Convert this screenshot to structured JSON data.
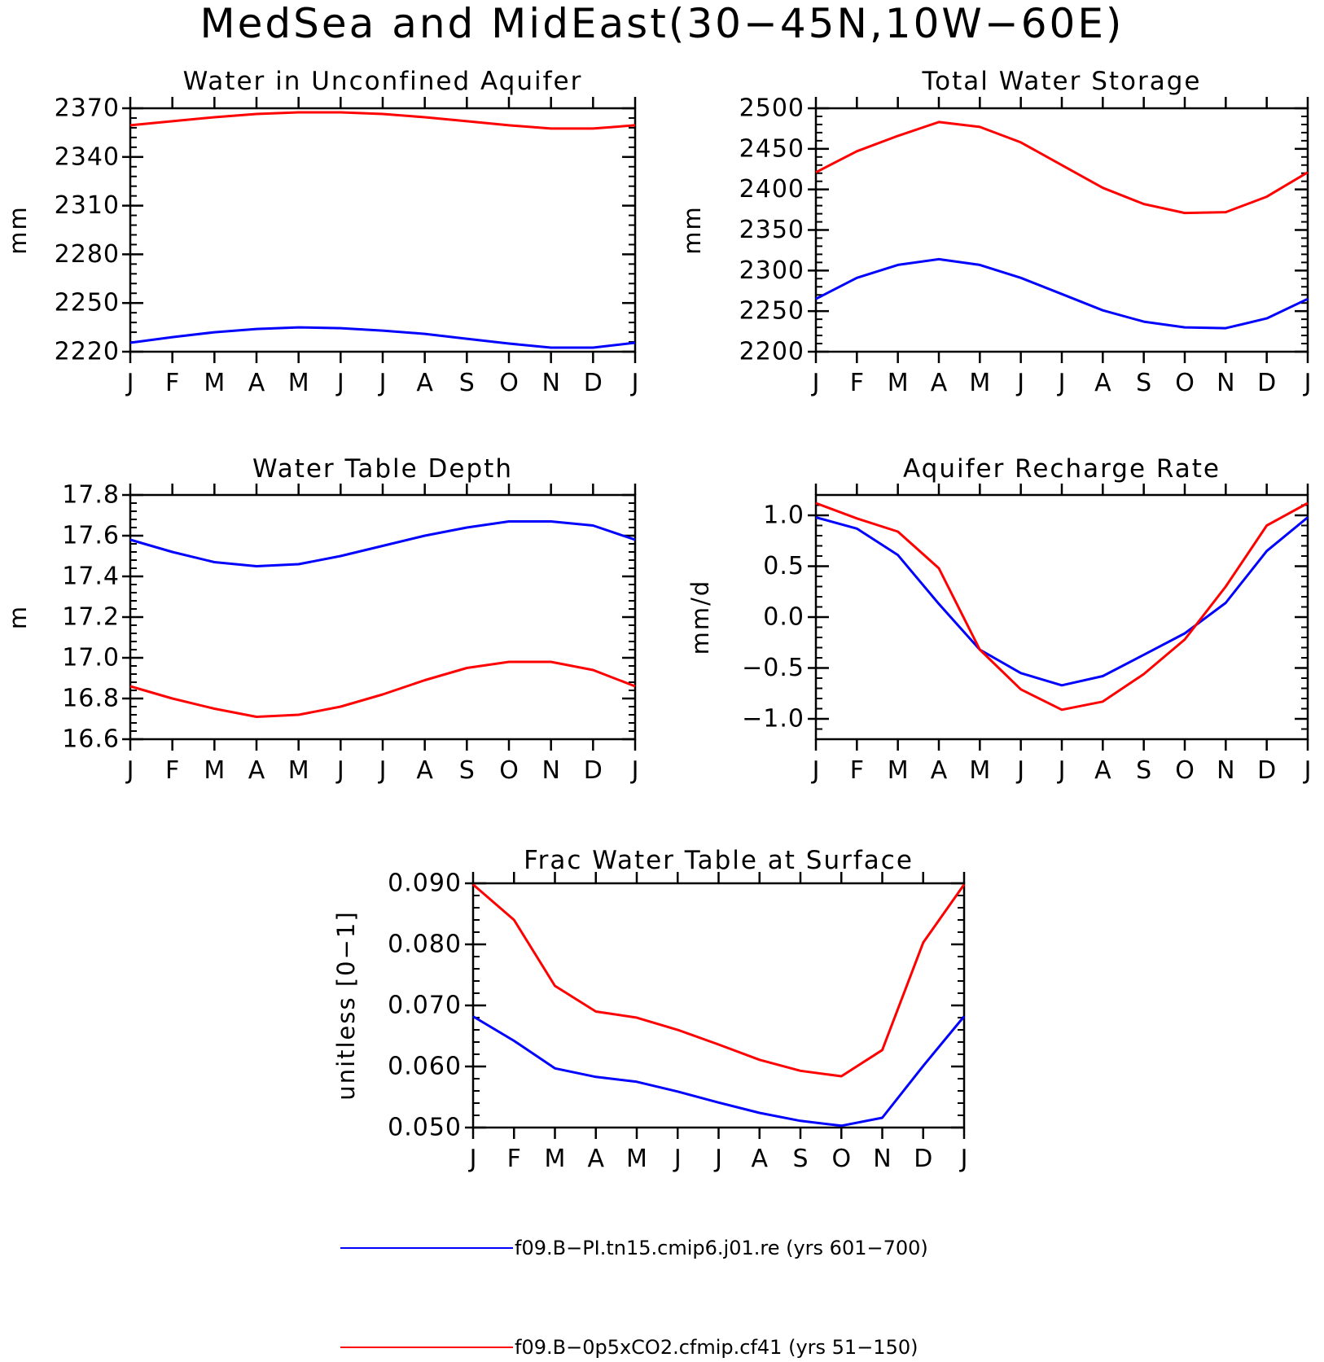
{
  "title": "MedSea and MidEast(30−45N,10W−60E)",
  "colors": {
    "series_pi": "#0000ff",
    "series_co2": "#ff0000",
    "axis": "#000000"
  },
  "legend": [
    {
      "label": "f09.B−PI.tn15.cmip6.j01.re (yrs 601−700)",
      "color": "#0000ff"
    },
    {
      "label": "f09.B−0p5xCO2.cfmip.cf41 (yrs 51−150)",
      "color": "#ff0000"
    }
  ],
  "chart_data": [
    {
      "type": "line",
      "title": "Water in Unconfined Aquifer",
      "ylabel": "mm",
      "xlabel": "",
      "categories": [
        "J",
        "F",
        "M",
        "A",
        "M",
        "J",
        "J",
        "A",
        "S",
        "O",
        "N",
        "D",
        "J"
      ],
      "ylim": [
        2220,
        2370
      ],
      "yticks": [
        2220,
        2250,
        2280,
        2310,
        2340,
        2370
      ],
      "ytick_labels": [
        "2220",
        "2250",
        "2280",
        "2310",
        "2340",
        "2370"
      ],
      "grid": false,
      "series": [
        {
          "values": [
            2225.5,
            2229,
            2232,
            2234,
            2235,
            2234.5,
            2233,
            2231,
            2228,
            2225,
            2222.5,
            2222.5,
            2225.5
          ],
          "color": "#0000ff"
        },
        {
          "values": [
            2359.5,
            2362,
            2364.5,
            2366.5,
            2367.5,
            2367.5,
            2366.5,
            2364.5,
            2362,
            2359.5,
            2357.5,
            2357.5,
            2359.5
          ],
          "color": "#ff0000"
        }
      ]
    },
    {
      "type": "line",
      "title": "Total Water Storage",
      "ylabel": "mm",
      "xlabel": "",
      "categories": [
        "J",
        "F",
        "M",
        "A",
        "M",
        "J",
        "J",
        "A",
        "S",
        "O",
        "N",
        "D",
        "J"
      ],
      "ylim": [
        2200,
        2500
      ],
      "yticks": [
        2200,
        2250,
        2300,
        2350,
        2400,
        2450,
        2500
      ],
      "ytick_labels": [
        "2200",
        "2250",
        "2300",
        "2350",
        "2400",
        "2450",
        "2500"
      ],
      "grid": false,
      "series": [
        {
          "values": [
            2265,
            2291,
            2307,
            2314,
            2307,
            2291,
            2271,
            2251,
            2237,
            2230,
            2229,
            2241,
            2265
          ],
          "color": "#0000ff"
        },
        {
          "values": [
            2421,
            2447,
            2466,
            2483,
            2477,
            2458,
            2430,
            2402,
            2382,
            2371,
            2372,
            2391,
            2421
          ],
          "color": "#ff0000"
        }
      ]
    },
    {
      "type": "line",
      "title": "Water Table Depth",
      "ylabel": "m",
      "xlabel": "",
      "categories": [
        "J",
        "F",
        "M",
        "A",
        "M",
        "J",
        "J",
        "A",
        "S",
        "O",
        "N",
        "D",
        "J"
      ],
      "ylim": [
        16.6,
        17.8
      ],
      "yticks": [
        16.6,
        16.8,
        17.0,
        17.2,
        17.4,
        17.6,
        17.8
      ],
      "ytick_labels": [
        "16.6",
        "16.8",
        "17.0",
        "17.2",
        "17.4",
        "17.6",
        "17.8"
      ],
      "grid": false,
      "series": [
        {
          "values": [
            17.58,
            17.52,
            17.47,
            17.45,
            17.46,
            17.5,
            17.55,
            17.6,
            17.64,
            17.67,
            17.67,
            17.65,
            17.58
          ],
          "color": "#0000ff"
        },
        {
          "values": [
            16.86,
            16.8,
            16.75,
            16.71,
            16.72,
            16.76,
            16.82,
            16.89,
            16.95,
            16.98,
            16.98,
            16.94,
            16.86
          ],
          "color": "#ff0000"
        }
      ]
    },
    {
      "type": "line",
      "title": "Aquifer Recharge Rate",
      "ylabel": "mm/d",
      "xlabel": "",
      "categories": [
        "J",
        "F",
        "M",
        "A",
        "M",
        "J",
        "J",
        "A",
        "S",
        "O",
        "N",
        "D",
        "J"
      ],
      "ylim": [
        -1.2,
        1.2
      ],
      "yticks": [
        -1.0,
        -0.5,
        0.0,
        0.5,
        1.0
      ],
      "ytick_labels": [
        "−1.0",
        "−0.5",
        "0.0",
        "0.5",
        "1.0"
      ],
      "grid": false,
      "series": [
        {
          "values": [
            0.98,
            0.87,
            0.61,
            0.13,
            -0.32,
            -0.55,
            -0.67,
            -0.58,
            -0.37,
            -0.16,
            0.14,
            0.65,
            0.98
          ],
          "color": "#0000ff"
        },
        {
          "values": [
            1.12,
            0.97,
            0.84,
            0.48,
            -0.32,
            -0.71,
            -0.91,
            -0.83,
            -0.56,
            -0.22,
            0.3,
            0.9,
            1.12
          ],
          "color": "#ff0000"
        }
      ]
    },
    {
      "type": "line",
      "title": "Frac Water Table at Surface",
      "ylabel": "unitless [0−1]",
      "xlabel": "",
      "categories": [
        "J",
        "F",
        "M",
        "A",
        "M",
        "J",
        "J",
        "A",
        "S",
        "O",
        "N",
        "D",
        "J"
      ],
      "ylim": [
        0.05,
        0.09
      ],
      "yticks": [
        0.05,
        0.06,
        0.07,
        0.08,
        0.09
      ],
      "ytick_labels": [
        "0.050",
        "0.060",
        "0.070",
        "0.080",
        "0.090"
      ],
      "grid": false,
      "series": [
        {
          "values": [
            0.0682,
            0.0642,
            0.0597,
            0.0583,
            0.0575,
            0.0559,
            0.0541,
            0.0524,
            0.0511,
            0.0503,
            0.0516,
            0.0601,
            0.0682
          ],
          "color": "#0000ff"
        },
        {
          "values": [
            0.0898,
            0.084,
            0.0732,
            0.069,
            0.068,
            0.066,
            0.0636,
            0.0611,
            0.0593,
            0.0584,
            0.0627,
            0.0803,
            0.0898
          ],
          "color": "#ff0000"
        }
      ]
    }
  ]
}
